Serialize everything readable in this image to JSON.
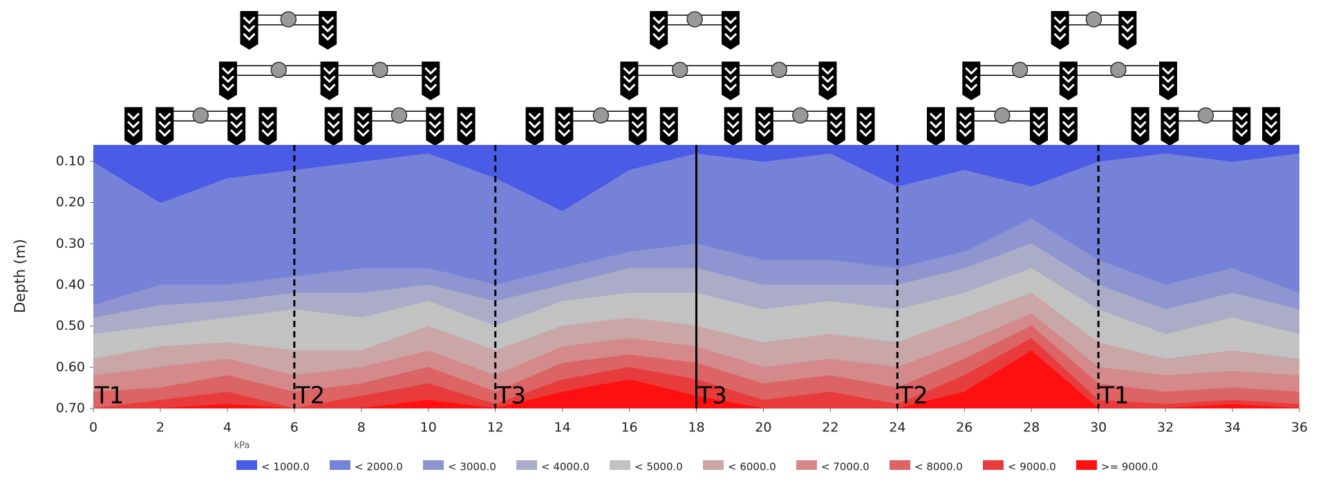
{
  "chart_data": {
    "type": "contour-bands",
    "ylabel": "Depth (m)",
    "unit_label": "kPa",
    "y_inverted": true,
    "xlim": [
      0,
      36
    ],
    "ylim": [
      0.06,
      0.7
    ],
    "xticks": [
      0,
      2,
      4,
      6,
      8,
      10,
      12,
      14,
      16,
      18,
      20,
      22,
      24,
      26,
      28,
      30,
      32,
      34,
      36
    ],
    "yticks": [
      {
        "value": 0.1,
        "label": "0.10"
      },
      {
        "value": 0.2,
        "label": "0.20"
      },
      {
        "value": 0.3,
        "label": "0.30"
      },
      {
        "value": 0.4,
        "label": "0.40"
      },
      {
        "value": 0.5,
        "label": "0.50"
      },
      {
        "value": 0.6,
        "label": "0.60"
      },
      {
        "value": 0.7,
        "label": "0.70"
      }
    ],
    "x": [
      0,
      2,
      4,
      6,
      8,
      10,
      12,
      14,
      16,
      18,
      20,
      22,
      24,
      26,
      28,
      30,
      32,
      34,
      36
    ],
    "series": [
      {
        "name": "< 1000.0",
        "color": "#4a5ce6",
        "values": [
          0.1,
          0.2,
          0.14,
          0.12,
          0.1,
          0.08,
          0.14,
          0.22,
          0.12,
          0.08,
          0.1,
          0.08,
          0.16,
          0.12,
          0.16,
          0.1,
          0.08,
          0.1,
          0.08
        ]
      },
      {
        "name": "< 2000.0",
        "color": "#7682d8",
        "values": [
          0.06,
          0.06,
          0.06,
          0.06,
          0.06,
          0.06,
          0.06,
          0.06,
          0.06,
          0.06,
          0.06,
          0.06,
          0.06,
          0.06,
          0.06,
          0.06,
          0.06,
          0.06,
          0.06
        ]
      },
      {
        "name": "< 3000.0",
        "color": "#8e95d0",
        "values": [
          0.45,
          0.4,
          0.4,
          0.38,
          0.36,
          0.36,
          0.4,
          0.36,
          0.32,
          0.3,
          0.34,
          0.34,
          0.36,
          0.32,
          0.24,
          0.34,
          0.4,
          0.36,
          0.42
        ]
      },
      {
        "name": "< 4000.0",
        "color": "#aaacc8",
        "values": [
          0.48,
          0.45,
          0.44,
          0.42,
          0.42,
          0.4,
          0.44,
          0.4,
          0.36,
          0.36,
          0.4,
          0.4,
          0.4,
          0.36,
          0.3,
          0.4,
          0.46,
          0.42,
          0.46
        ]
      },
      {
        "name": "< 5000.0",
        "color": "#c2c2c2",
        "values": [
          0.52,
          0.5,
          0.48,
          0.46,
          0.48,
          0.44,
          0.5,
          0.44,
          0.42,
          0.42,
          0.46,
          0.44,
          0.46,
          0.42,
          0.36,
          0.46,
          0.52,
          0.48,
          0.52
        ]
      },
      {
        "name": "< 6000.0",
        "color": "#caa6a6",
        "values": [
          0.58,
          0.55,
          0.54,
          0.56,
          0.56,
          0.5,
          0.56,
          0.5,
          0.48,
          0.5,
          0.54,
          0.52,
          0.54,
          0.48,
          0.42,
          0.54,
          0.58,
          0.56,
          0.58
        ]
      },
      {
        "name": "< 7000.0",
        "color": "#d48a8a",
        "values": [
          0.62,
          0.6,
          0.58,
          0.62,
          0.6,
          0.56,
          0.62,
          0.55,
          0.53,
          0.55,
          0.6,
          0.58,
          0.6,
          0.54,
          0.47,
          0.6,
          0.62,
          0.61,
          0.62
        ]
      },
      {
        "name": "< 8000.0",
        "color": "#dc6464",
        "values": [
          0.66,
          0.65,
          0.62,
          0.66,
          0.64,
          0.6,
          0.66,
          0.59,
          0.57,
          0.59,
          0.64,
          0.62,
          0.65,
          0.58,
          0.5,
          0.64,
          0.66,
          0.65,
          0.66
        ]
      },
      {
        "name": "< 9000.0",
        "color": "#e83c3c",
        "values": [
          0.7,
          0.68,
          0.66,
          0.7,
          0.67,
          0.64,
          0.69,
          0.63,
          0.6,
          0.63,
          0.68,
          0.66,
          0.69,
          0.62,
          0.53,
          0.68,
          0.69,
          0.68,
          0.69
        ]
      },
      {
        "name": ">= 9000.0",
        "color": "#ff1010",
        "values": [
          0.7,
          0.7,
          0.69,
          0.7,
          0.7,
          0.68,
          0.7,
          0.66,
          0.63,
          0.67,
          0.7,
          0.7,
          0.7,
          0.66,
          0.56,
          0.7,
          0.7,
          0.69,
          0.7
        ]
      }
    ],
    "dividers": [
      {
        "x": 6,
        "style": "dashed"
      },
      {
        "x": 12,
        "style": "dashed"
      },
      {
        "x": 18,
        "style": "solid"
      },
      {
        "x": 24,
        "style": "dashed"
      },
      {
        "x": 30,
        "style": "dashed"
      }
    ],
    "zones": [
      {
        "x": 0,
        "label": "T1"
      },
      {
        "x": 6,
        "label": "T2"
      },
      {
        "x": 12,
        "label": "T3"
      },
      {
        "x": 18,
        "label": "T3"
      },
      {
        "x": 24,
        "label": "T2"
      },
      {
        "x": 30,
        "label": "T1"
      }
    ]
  }
}
